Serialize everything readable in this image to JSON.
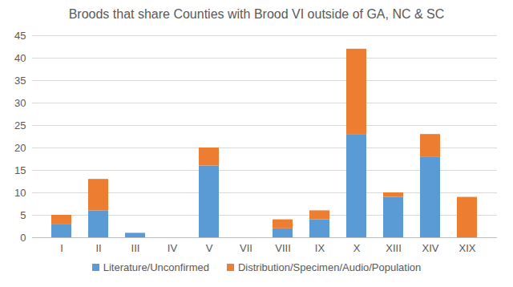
{
  "chart_data": {
    "type": "bar",
    "stacked": true,
    "title": "Broods that share Counties with Brood VI outside of GA, NC & SC",
    "categories": [
      "I",
      "II",
      "III",
      "IV",
      "V",
      "VII",
      "VIII",
      "IX",
      "X",
      "XIII",
      "XIV",
      "XIX"
    ],
    "series": [
      {
        "name": "Literature/Unconfirmed",
        "color": "#5b9bd5",
        "values": [
          3,
          6,
          1,
          0,
          16,
          0,
          2,
          4,
          23,
          9,
          18,
          0
        ]
      },
      {
        "name": "Distribution/Specimen/Audio/Population",
        "color": "#ed7d31",
        "values": [
          2,
          7,
          0,
          0,
          4,
          0,
          2,
          2,
          19,
          1,
          5,
          9
        ]
      }
    ],
    "ylim": [
      0,
      45
    ],
    "yticks": [
      0,
      5,
      10,
      15,
      20,
      25,
      30,
      35,
      40,
      45
    ],
    "grid": true,
    "legend": "bottom"
  }
}
